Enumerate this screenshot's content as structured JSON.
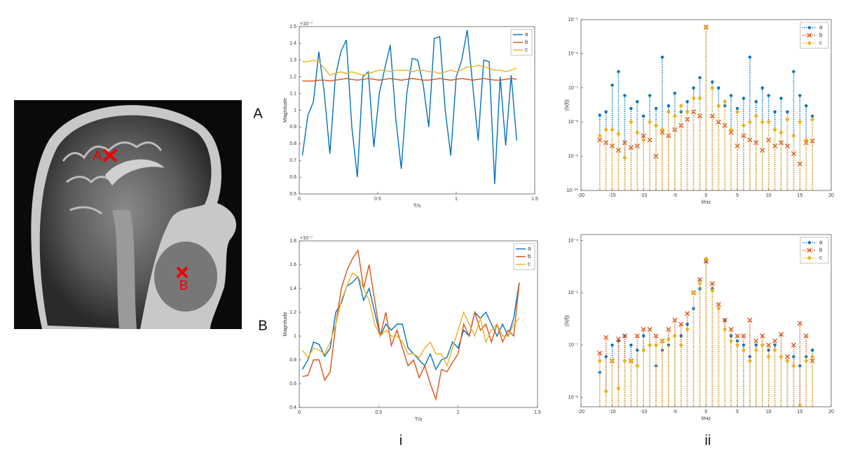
{
  "panel_labels": {
    "row_a": "A",
    "row_b": "B",
    "col_i": "i",
    "col_ii": "ii"
  },
  "image": {
    "marker_a": "A",
    "marker_b": "B"
  },
  "chart_data": [
    {
      "type": "line",
      "x": [
        0.02,
        0.055,
        0.09,
        0.125,
        0.16,
        0.195,
        0.23,
        0.265,
        0.3,
        0.335,
        0.37,
        0.405,
        0.44,
        0.475,
        0.51,
        0.545,
        0.58,
        0.615,
        0.65,
        0.685,
        0.72,
        0.755,
        0.79,
        0.825,
        0.86,
        0.895,
        0.93,
        0.965,
        1.0,
        1.035,
        1.07,
        1.105,
        1.14,
        1.175,
        1.21,
        1.245,
        1.28,
        1.315,
        1.35,
        1.385
      ],
      "xlim": [
        0,
        1.5
      ],
      "xticks": [
        0,
        0.5,
        1,
        1.5
      ],
      "ylim": [
        0.5,
        1.5
      ],
      "yticks": [
        0.5,
        0.6,
        0.7,
        0.8,
        0.9,
        1,
        1.1,
        1.2,
        1.3,
        1.4,
        1.5
      ],
      "x_label": "T/s",
      "y_label": "Magnitude",
      "y_exponent": "×10⁻⁷",
      "legend": "upper right",
      "series": [
        {
          "name": "a",
          "color": "#0072BD",
          "values": [
            0.73,
            0.97,
            1.05,
            1.35,
            1.1,
            0.74,
            1.2,
            1.35,
            1.42,
            0.9,
            0.6,
            1.2,
            1.23,
            0.78,
            1.1,
            1.25,
            1.39,
            0.95,
            0.65,
            1.1,
            1.31,
            1.3,
            1.15,
            0.9,
            1.43,
            1.44,
            1.0,
            0.73,
            1.2,
            1.3,
            1.48,
            1.15,
            0.82,
            1.3,
            1.29,
            0.56,
            1.2,
            0.79,
            1.21,
            0.82
          ]
        },
        {
          "name": "b",
          "color": "#D95319",
          "values": [
            1.175,
            1.175,
            1.175,
            1.18,
            1.18,
            1.175,
            1.18,
            1.185,
            1.19,
            1.185,
            1.18,
            1.185,
            1.19,
            1.185,
            1.18,
            1.185,
            1.19,
            1.185,
            1.18,
            1.185,
            1.19,
            1.185,
            1.18,
            1.18,
            1.185,
            1.19,
            1.185,
            1.18,
            1.185,
            1.19,
            1.185,
            1.18,
            1.185,
            1.19,
            1.185,
            1.18,
            1.18,
            1.185,
            1.19,
            1.185
          ]
        },
        {
          "name": "c",
          "color": "#EDB120",
          "values": [
            1.29,
            1.29,
            1.3,
            1.29,
            1.25,
            1.21,
            1.22,
            1.23,
            1.22,
            1.23,
            1.22,
            1.21,
            1.22,
            1.23,
            1.24,
            1.24,
            1.23,
            1.24,
            1.24,
            1.24,
            1.23,
            1.24,
            1.24,
            1.23,
            1.23,
            1.22,
            1.23,
            1.24,
            1.23,
            1.24,
            1.26,
            1.26,
            1.27,
            1.26,
            1.25,
            1.24,
            1.24,
            1.23,
            1.24,
            1.25
          ]
        }
      ]
    },
    {
      "type": "line",
      "x": [
        0.02,
        0.055,
        0.09,
        0.125,
        0.16,
        0.195,
        0.23,
        0.265,
        0.3,
        0.335,
        0.37,
        0.405,
        0.44,
        0.475,
        0.51,
        0.545,
        0.58,
        0.615,
        0.65,
        0.685,
        0.72,
        0.755,
        0.79,
        0.825,
        0.86,
        0.895,
        0.93,
        0.965,
        1.0,
        1.035,
        1.07,
        1.105,
        1.14,
        1.175,
        1.21,
        1.245,
        1.28,
        1.315,
        1.35,
        1.385
      ],
      "xlim": [
        0,
        1.5
      ],
      "xticks": [
        0,
        0.5,
        1,
        1.5
      ],
      "ylim": [
        0.4,
        1.8
      ],
      "yticks": [
        0.4,
        0.6,
        0.8,
        1,
        1.2,
        1.4,
        1.6,
        1.8
      ],
      "x_label": "T/s",
      "y_label": "Magnitude",
      "y_exponent": "×10⁻⁷",
      "legend": "upper right",
      "series": [
        {
          "name": "a",
          "color": "#0072BD",
          "values": [
            0.72,
            0.8,
            0.95,
            0.93,
            0.83,
            0.9,
            1.2,
            1.28,
            1.42,
            1.45,
            1.5,
            1.3,
            1.4,
            1.2,
            1.0,
            1.1,
            1.05,
            1.1,
            1.1,
            0.9,
            0.85,
            0.8,
            0.75,
            0.85,
            0.72,
            0.8,
            0.82,
            0.95,
            0.9,
            1.05,
            1.0,
            1.2,
            1.15,
            1.2,
            1.1,
            1.0,
            1.1,
            1.0,
            1.15,
            1.45
          ]
        },
        {
          "name": "b",
          "color": "#D95319",
          "values": [
            0.66,
            0.67,
            0.8,
            0.8,
            0.63,
            0.7,
            1.1,
            1.4,
            1.55,
            1.65,
            1.72,
            1.4,
            1.6,
            1.3,
            1.0,
            1.2,
            0.92,
            1.05,
            0.9,
            0.75,
            0.8,
            0.65,
            0.75,
            0.6,
            0.47,
            0.72,
            0.7,
            0.78,
            0.85,
            1.1,
            1.0,
            1.2,
            1.05,
            1.1,
            0.95,
            1.1,
            0.95,
            1.05,
            1.0,
            1.45
          ]
        },
        {
          "name": "c",
          "color": "#EDB120",
          "values": [
            0.88,
            0.82,
            0.9,
            0.88,
            0.85,
            0.95,
            1.1,
            1.3,
            1.42,
            1.53,
            1.5,
            1.4,
            1.3,
            1.1,
            1.0,
            1.05,
            1.0,
            1.0,
            0.95,
            0.85,
            0.85,
            0.82,
            0.9,
            0.95,
            0.85,
            0.85,
            0.75,
            0.9,
            1.05,
            1.2,
            1.1,
            1.0,
            1.15,
            0.95,
            1.05,
            1.1,
            1.0,
            1.0,
            1.1,
            1.15
          ]
        }
      ]
    },
    {
      "type": "stem",
      "log_y": true,
      "x": [
        -17,
        -16,
        -15,
        -14,
        -13,
        -12,
        -11,
        -10,
        -9,
        -8,
        -7,
        -6,
        -5,
        -4,
        -3,
        -2,
        -1,
        0,
        1,
        2,
        3,
        4,
        5,
        6,
        7,
        8,
        9,
        10,
        11,
        12,
        13,
        14,
        15,
        16,
        17
      ],
      "xlim": [
        -20,
        20
      ],
      "xticks": [
        -20,
        -15,
        -10,
        -5,
        0,
        5,
        10,
        15,
        20
      ],
      "ylim": [
        1e-10,
        1e-05
      ],
      "yticks": [
        {
          "value": 1e-10,
          "label": "10⁻¹⁰"
        },
        {
          "value": 1e-09,
          "label": "10⁻⁹"
        },
        {
          "value": 1e-08,
          "label": "10⁻⁸"
        },
        {
          "value": 1e-07,
          "label": "10⁻⁷"
        },
        {
          "value": 1e-06,
          "label": "10⁻⁶"
        },
        {
          "value": 1e-05,
          "label": "10⁻⁵"
        }
      ],
      "x_label": "f/Hz",
      "y_label": "|S(f)|",
      "legend": "upper right",
      "series": [
        {
          "name": "a",
          "color": "#0072BD",
          "marker": "o",
          "values": [
            1.6e-08,
            2e-08,
            1.2e-07,
            3e-07,
            6e-08,
            2.5e-08,
            4e-08,
            1.5e-08,
            6e-08,
            2.5e-08,
            8e-07,
            3e-08,
            7e-08,
            2e-08,
            4e-08,
            1e-07,
            2e-07,
            6e-06,
            1.5e-07,
            1e-07,
            3e-08,
            6e-08,
            2.5e-08,
            5e-08,
            8e-07,
            4e-08,
            1e-07,
            6e-08,
            2e-08,
            5e-08,
            2e-08,
            3e-07,
            6e-08,
            3e-08,
            1.5e-08
          ]
        },
        {
          "name": "b",
          "color": "#D95319",
          "marker": "x",
          "values": [
            3e-09,
            2.5e-09,
            2e-09,
            1.5e-09,
            2.5e-09,
            1.8e-09,
            2e-09,
            4e-09,
            3e-09,
            1e-09,
            5e-09,
            4e-09,
            6e-09,
            8e-09,
            1.2e-08,
            2e-08,
            1.5e-08,
            6e-06,
            1.5e-08,
            1e-08,
            8e-09,
            5e-09,
            2e-09,
            4e-09,
            3e-09,
            2.5e-09,
            1.5e-09,
            3e-09,
            2e-09,
            2.5e-09,
            2e-09,
            1.2e-09,
            6e-10,
            2.5e-09,
            2.8e-09
          ]
        },
        {
          "name": "c",
          "color": "#EDB120",
          "marker": "d",
          "values": [
            4e-09,
            6e-09,
            6e-09,
            4.5e-09,
            9e-10,
            1e-08,
            5e-09,
            3e-09,
            1e-08,
            8e-09,
            6e-09,
            2e-08,
            1.5e-08,
            3e-08,
            2e-08,
            5e-08,
            5e-08,
            6e-06,
            1e-07,
            3e-08,
            4e-08,
            6e-09,
            2e-08,
            8e-09,
            1e-08,
            1.5e-08,
            1e-08,
            1e-08,
            6e-09,
            5e-09,
            1.2e-08,
            4e-09,
            1e-08,
            3e-09,
            1.2e-08
          ]
        }
      ]
    },
    {
      "type": "stem",
      "log_y": true,
      "x": [
        -17,
        -16,
        -15,
        -14,
        -13,
        -12,
        -11,
        -10,
        -9,
        -8,
        -7,
        -6,
        -5,
        -4,
        -3,
        -2,
        -1,
        0,
        1,
        2,
        3,
        4,
        5,
        6,
        7,
        8,
        9,
        10,
        11,
        12,
        13,
        14,
        15,
        16,
        17
      ],
      "xlim": [
        -20,
        20
      ],
      "xticks": [
        -20,
        -15,
        -10,
        -5,
        0,
        5,
        10,
        15,
        20
      ],
      "ylim": [
        6.6e-09,
        1.3e-05
      ],
      "yticks": [
        {
          "value": 1e-08,
          "label": "10⁻⁸"
        },
        {
          "value": 1e-07,
          "label": "10⁻⁷"
        },
        {
          "value": 1e-06,
          "label": "10⁻⁶"
        },
        {
          "value": 1e-05,
          "label": "10⁻⁵"
        }
      ],
      "x_label": "f/Hz",
      "y_label": "|S(f)|",
      "legend": "upper right",
      "series": [
        {
          "name": "a",
          "color": "#0072BD",
          "marker": "o",
          "values": [
            3e-08,
            6e-08,
            1e-07,
            1.2e-07,
            1.5e-07,
            1e-07,
            8e-08,
            1.5e-07,
            1e-07,
            4e-08,
            8e-08,
            1e-07,
            1.5e-07,
            1.5e-07,
            2.5e-07,
            5e-07,
            1.2e-06,
            4e-06,
            1.2e-06,
            5e-07,
            3e-07,
            1.5e-07,
            1.2e-07,
            1e-07,
            6e-08,
            1e-07,
            1e-07,
            8e-08,
            1e-07,
            6e-08,
            5e-08,
            6e-08,
            4e-08,
            6e-08,
            8e-08
          ]
        },
        {
          "name": "b",
          "color": "#D95319",
          "marker": "x",
          "values": [
            7e-08,
            1.4e-07,
            5e-08,
            1.3e-07,
            1.5e-07,
            5e-08,
            1.5e-07,
            2e-07,
            2e-07,
            1.5e-07,
            1.2e-07,
            2e-07,
            3e-07,
            2.5e-07,
            4e-07,
            1e-06,
            1.8e-06,
            4e-06,
            1.5e-06,
            6e-07,
            3e-07,
            2e-07,
            1.5e-07,
            1.5e-07,
            3e-07,
            1.2e-07,
            1.5e-07,
            1e-07,
            1.2e-07,
            1.6e-07,
            6e-08,
            1e-07,
            2.6e-07,
            1.5e-07,
            5e-08
          ]
        },
        {
          "name": "c",
          "color": "#EDB120",
          "marker": "d",
          "values": [
            5e-08,
            1.3e-08,
            5e-08,
            1.5e-08,
            5e-08,
            5e-08,
            4e-08,
            8e-08,
            1e-07,
            1e-07,
            1.2e-07,
            1.3e-07,
            1.5e-07,
            1e-07,
            2e-07,
            1e-06,
            1.5e-06,
            4.5e-06,
            1.1e-06,
            5e-07,
            2e-07,
            1.2e-07,
            1e-07,
            8e-08,
            5e-08,
            8e-08,
            1e-07,
            6e-08,
            8e-08,
            6e-08,
            5e-08,
            4e-08,
            7e-09,
            5e-08,
            6e-08
          ]
        }
      ]
    }
  ]
}
